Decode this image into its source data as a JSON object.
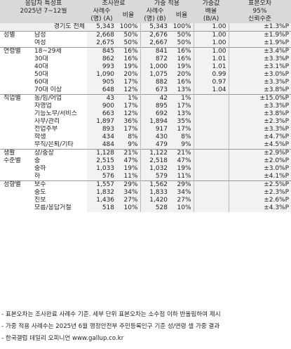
{
  "header": {
    "col_group": "응답자 특성표",
    "col_period": "2025년 7~12월",
    "survey_done": "조사완료",
    "weighted": "가중 적용",
    "weight_ratio_1": "가중값",
    "weight_ratio_2": "배율",
    "weight_ratio_3": "(B/A)",
    "se_1": "표본오차",
    "se_2": "95%",
    "se_3": "신뢰수준",
    "cases_a_1": "사례수",
    "cases_a_2": "(명) (A)",
    "ratio_a": "비율",
    "cases_b_1": "사례수",
    "cases_b_2": "(명) (B)",
    "ratio_b": "비율"
  },
  "rows": [
    {
      "cat": "",
      "sub": "경기도 전체",
      "a": "5,343",
      "pa": "100%",
      "b": "5,343",
      "pb": "100%",
      "w": "1.00",
      "se": "±1.3%P"
    },
    {
      "cat": "성별",
      "sub": "남성",
      "a": "2,668",
      "pa": "50%",
      "b": "2,676",
      "pb": "50%",
      "w": "1.00",
      "se": "±1.9%P"
    },
    {
      "cat": "",
      "sub": "여성",
      "a": "2,675",
      "pa": "50%",
      "b": "2,667",
      "pb": "50%",
      "w": "1.00",
      "se": "±1.9%P"
    },
    {
      "cat": "연령별",
      "sub": "18~29세",
      "a": "845",
      "pa": "16%",
      "b": "841",
      "pb": "16%",
      "w": "1.00",
      "se": "±3.4%P"
    },
    {
      "cat": "",
      "sub": "30대",
      "a": "862",
      "pa": "16%",
      "b": "872",
      "pb": "16%",
      "w": "1.01",
      "se": "±3.3%P"
    },
    {
      "cat": "",
      "sub": "40대",
      "a": "993",
      "pa": "19%",
      "b": "1,000",
      "pb": "19%",
      "w": "1.01",
      "se": "±3.1%P"
    },
    {
      "cat": "",
      "sub": "50대",
      "a": "1,090",
      "pa": "20%",
      "b": "1,075",
      "pb": "20%",
      "w": "0.99",
      "se": "±3.0%P"
    },
    {
      "cat": "",
      "sub": "60대",
      "a": "905",
      "pa": "17%",
      "b": "882",
      "pb": "16%",
      "w": "0.97",
      "se": "±3.3%P"
    },
    {
      "cat": "",
      "sub": "70대 이상",
      "a": "648",
      "pa": "12%",
      "b": "673",
      "pb": "13%",
      "w": "1.04",
      "se": "±3.8%P"
    },
    {
      "cat": "직업별",
      "sub": "농/임/어업",
      "a": "43",
      "pa": "1%",
      "b": "42",
      "pb": "1%",
      "w": "",
      "se": "±15.0%P"
    },
    {
      "cat": "",
      "sub": "자영업",
      "a": "900",
      "pa": "17%",
      "b": "895",
      "pb": "17%",
      "w": "",
      "se": "±3.3%P"
    },
    {
      "cat": "",
      "sub": "기능노무/서비스",
      "a": "663",
      "pa": "12%",
      "b": "692",
      "pb": "13%",
      "w": "",
      "se": "±3.8%P"
    },
    {
      "cat": "",
      "sub": "사무/관리",
      "a": "1,897",
      "pa": "36%",
      "b": "1,894",
      "pb": "35%",
      "w": "",
      "se": "±2.3%P"
    },
    {
      "cat": "",
      "sub": "전업주부",
      "a": "893",
      "pa": "17%",
      "b": "917",
      "pb": "17%",
      "w": "",
      "se": "±3.3%P"
    },
    {
      "cat": "",
      "sub": "학생",
      "a": "434",
      "pa": "8%",
      "b": "430",
      "pb": "8%",
      "w": "",
      "se": "±4.7%P"
    },
    {
      "cat": "",
      "sub": "무직/은퇴/기타",
      "a": "484",
      "pa": "9%",
      "b": "479",
      "pb": "9%",
      "w": "",
      "se": "±4.5%P"
    },
    {
      "cat": "생활",
      "sub": "상/중상",
      "a": "1,128",
      "pa": "21%",
      "b": "1,122",
      "pb": "21%",
      "w": "",
      "se": "±2.9%P"
    },
    {
      "cat": "수준별",
      "sub": "중",
      "a": "2,515",
      "pa": "47%",
      "b": "2,518",
      "pb": "47%",
      "w": "",
      "se": "±2.0%P"
    },
    {
      "cat": "",
      "sub": "중하",
      "a": "1,033",
      "pa": "19%",
      "b": "1,032",
      "pb": "19%",
      "w": "",
      "se": "±3.0%P"
    },
    {
      "cat": "",
      "sub": "하",
      "a": "576",
      "pa": "11%",
      "b": "579",
      "pb": "11%",
      "w": "",
      "se": "±4.1%P"
    },
    {
      "cat": "성향별",
      "sub": "보수",
      "a": "1,557",
      "pa": "29%",
      "b": "1,562",
      "pb": "29%",
      "w": "",
      "se": "±2.5%P"
    },
    {
      "cat": "",
      "sub": "중도",
      "a": "1,832",
      "pa": "34%",
      "b": "1,833",
      "pb": "34%",
      "w": "",
      "se": "±2.3%P"
    },
    {
      "cat": "",
      "sub": "진보",
      "a": "1,436",
      "pa": "27%",
      "b": "1,420",
      "pb": "27%",
      "w": "",
      "se": "±2.6%P"
    },
    {
      "cat": "",
      "sub": "모름/응답거절",
      "a": "518",
      "pa": "10%",
      "b": "528",
      "pb": "10%",
      "w": "",
      "se": "±4.3%P"
    }
  ],
  "notes": [
    "- 표본오차는 조사완료 사례수 기준. 세부 단위 표본오차는 소수점 이하 반올림하여 제시",
    "- 가중 적용 사례수는 2025년 6월 행정안전부 주민등록인구 기준 성/연령 셀 가중 결과",
    "- 한국갤럽 데일리 오피니언 www.gallup.co.kr"
  ]
}
